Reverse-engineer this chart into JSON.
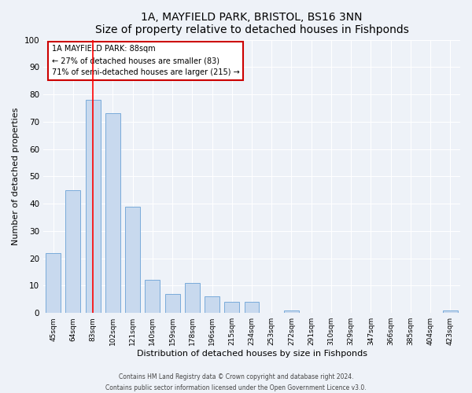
{
  "title": "1A, MAYFIELD PARK, BRISTOL, BS16 3NN",
  "subtitle": "Size of property relative to detached houses in Fishponds",
  "xlabel": "Distribution of detached houses by size in Fishponds",
  "ylabel": "Number of detached properties",
  "categories": [
    "45sqm",
    "64sqm",
    "83sqm",
    "102sqm",
    "121sqm",
    "140sqm",
    "159sqm",
    "178sqm",
    "196sqm",
    "215sqm",
    "234sqm",
    "253sqm",
    "272sqm",
    "291sqm",
    "310sqm",
    "329sqm",
    "347sqm",
    "366sqm",
    "385sqm",
    "404sqm",
    "423sqm"
  ],
  "values": [
    22,
    45,
    78,
    73,
    39,
    12,
    7,
    11,
    6,
    4,
    4,
    0,
    1,
    0,
    0,
    0,
    0,
    0,
    0,
    0,
    1
  ],
  "bar_color": "#c8d9ee",
  "bar_edge_color": "#7aabda",
  "ylim": [
    0,
    100
  ],
  "yticks": [
    0,
    10,
    20,
    30,
    40,
    50,
    60,
    70,
    80,
    90,
    100
  ],
  "redline_index": 2,
  "annotation_title": "1A MAYFIELD PARK: 88sqm",
  "annotation_line1": "← 27% of detached houses are smaller (83)",
  "annotation_line2": "71% of semi-detached houses are larger (215) →",
  "annotation_box_edgecolor": "#cc0000",
  "footer_line1": "Contains HM Land Registry data © Crown copyright and database right 2024.",
  "footer_line2": "Contains public sector information licensed under the Open Government Licence v3.0.",
  "fig_facecolor": "#eef2f8",
  "plot_facecolor": "#eef2f8",
  "grid_color": "#ffffff",
  "title_fontsize": 10,
  "subtitle_fontsize": 9
}
